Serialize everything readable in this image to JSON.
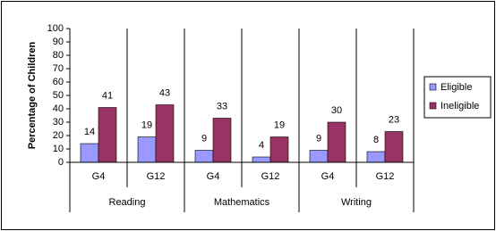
{
  "chart_data": {
    "type": "bar",
    "y_label": "Percentage of Children",
    "categories": [
      "G4",
      "G12",
      "G4",
      "G12",
      "G4",
      "G12"
    ],
    "groups": [
      "Reading",
      "Mathematics",
      "Writing"
    ],
    "series": [
      {
        "name": "Eligible",
        "color": "#9999ff",
        "values": [
          14,
          19,
          9,
          4,
          9,
          8
        ]
      },
      {
        "name": "Ineligible",
        "color": "#993366",
        "values": [
          41,
          43,
          33,
          19,
          30,
          23
        ]
      }
    ],
    "ylim": [
      0,
      100
    ],
    "yticks": [
      0,
      10,
      20,
      30,
      40,
      50,
      60,
      70,
      80,
      90,
      100
    ],
    "legend": "right"
  }
}
